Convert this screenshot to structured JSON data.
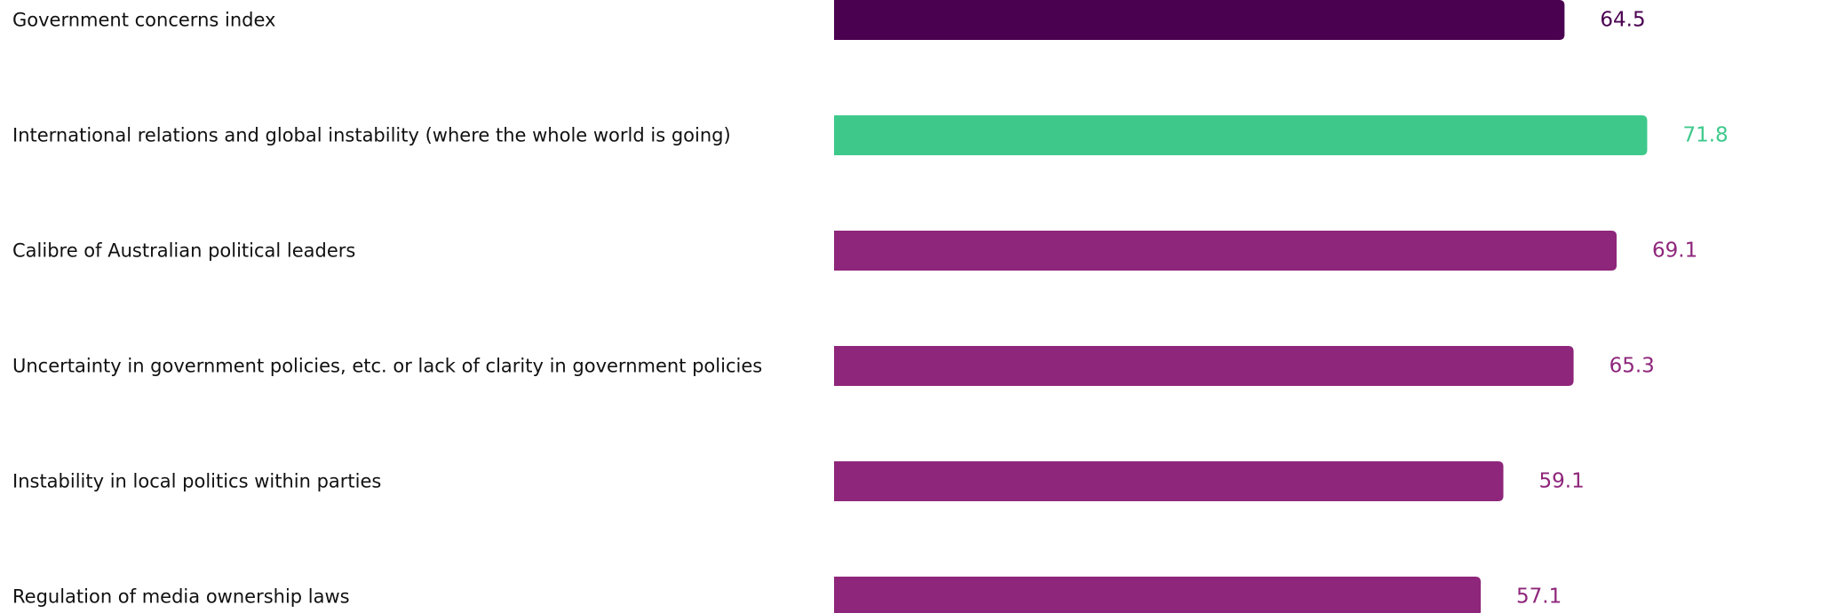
{
  "chart_data": {
    "type": "bar",
    "orientation": "horizontal",
    "categories": [
      "Government concerns index",
      "International relations and global instability (where the whole world is going)",
      "Calibre of Australian political leaders",
      "Uncertainty in government policies, etc. or lack of clarity in government policies",
      "Instability in local politics within parties",
      "Regulation of media ownership laws"
    ],
    "values": [
      64.5,
      71.8,
      69.1,
      65.3,
      59.1,
      57.1
    ],
    "value_labels": [
      "64.5",
      "71.8",
      "69.1",
      "65.3",
      "59.1",
      "57.1"
    ],
    "colors": [
      "#4a0150",
      "#3ec98b",
      "#8e267b",
      "#8e267b",
      "#8e267b",
      "#8e267b"
    ],
    "xlim": [
      0,
      100
    ],
    "grid": false,
    "legend": "none",
    "title": "",
    "xlabel": "",
    "ylabel": ""
  }
}
